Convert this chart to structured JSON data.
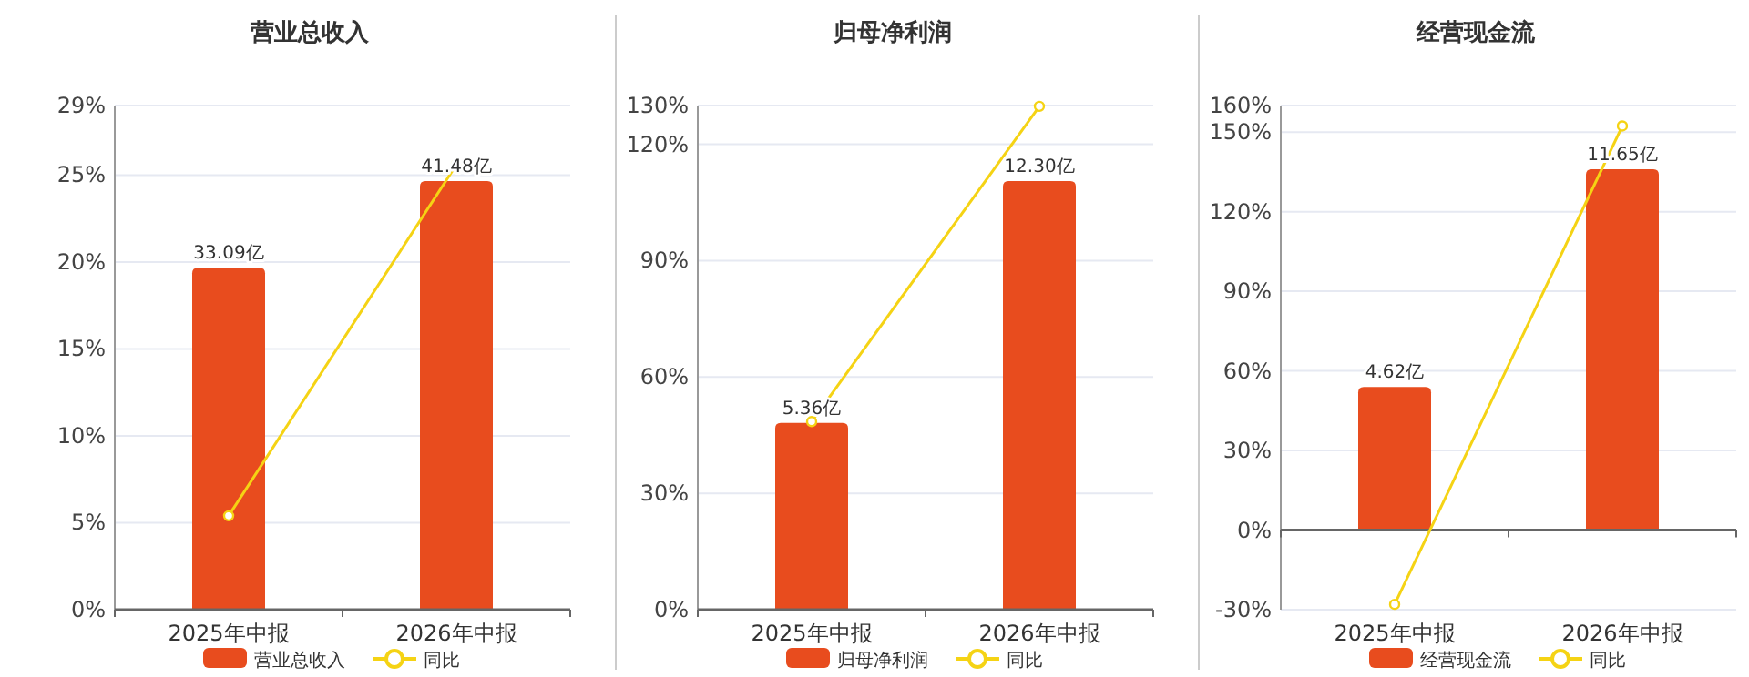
{
  "chart_data": [
    {
      "type": "bar",
      "title": "营业总收入",
      "categories": [
        "2025年中报",
        "2026年中报"
      ],
      "series": [
        {
          "name": "营业总收入",
          "axis": "y2",
          "color": "#e84c1e",
          "values": [
            33.09,
            41.48
          ],
          "value_labels": [
            "33.09亿",
            "41.48亿"
          ]
        },
        {
          "name": "同比",
          "type": "line",
          "color": "#f5d314",
          "values": [
            5.4,
            25.6
          ]
        }
      ],
      "ylim": [
        0,
        29
      ],
      "yticks": [
        {
          "value": 0,
          "label": "0%"
        },
        {
          "value": 5,
          "label": "5%"
        },
        {
          "value": 10,
          "label": "10%"
        },
        {
          "value": 15,
          "label": "15%"
        },
        {
          "value": 20,
          "label": "20%"
        },
        {
          "value": 25,
          "label": "25%"
        },
        {
          "value": 29,
          "label": "29%"
        }
      ],
      "grid": "y",
      "legend": "bottom",
      "marker": "circle"
    },
    {
      "type": "bar",
      "title": "归母净利润",
      "categories": [
        "2025年中报",
        "2026年中报"
      ],
      "series": [
        {
          "name": "归母净利润",
          "axis": "y2",
          "color": "#e84c1e",
          "values": [
            5.36,
            12.3
          ],
          "value_labels": [
            "5.36亿",
            "12.30亿"
          ]
        },
        {
          "name": "同比",
          "type": "line",
          "color": "#f5d314",
          "values": [
            48.5,
            129.8
          ]
        }
      ],
      "ylim": [
        0,
        130
      ],
      "yticks": [
        {
          "value": 0,
          "label": "0%"
        },
        {
          "value": 30,
          "label": "30%"
        },
        {
          "value": 60,
          "label": "60%"
        },
        {
          "value": 90,
          "label": "90%"
        },
        {
          "value": 120,
          "label": "120%"
        },
        {
          "value": 130,
          "label": "130%"
        }
      ],
      "grid": "y",
      "legend": "bottom",
      "marker": "circle"
    },
    {
      "type": "bar",
      "title": "经营现金流",
      "categories": [
        "2025年中报",
        "2026年中报"
      ],
      "series": [
        {
          "name": "经营现金流",
          "axis": "y2",
          "color": "#e84c1e",
          "values": [
            4.62,
            11.65
          ],
          "value_labels": [
            "4.62亿",
            "11.65亿"
          ]
        },
        {
          "name": "同比",
          "type": "line",
          "color": "#f5d314",
          "values": [
            -28,
            152.3
          ]
        }
      ],
      "ylim": [
        -30,
        160
      ],
      "yticks": [
        {
          "value": -30,
          "label": "-30%"
        },
        {
          "value": 0,
          "label": "0%"
        },
        {
          "value": 30,
          "label": "30%"
        },
        {
          "value": 60,
          "label": "60%"
        },
        {
          "value": 90,
          "label": "90%"
        },
        {
          "value": 120,
          "label": "120%"
        },
        {
          "value": 150,
          "label": "150%"
        },
        {
          "value": 160,
          "label": "160%"
        }
      ],
      "grid": "y",
      "legend": "bottom",
      "marker": "circle"
    }
  ]
}
